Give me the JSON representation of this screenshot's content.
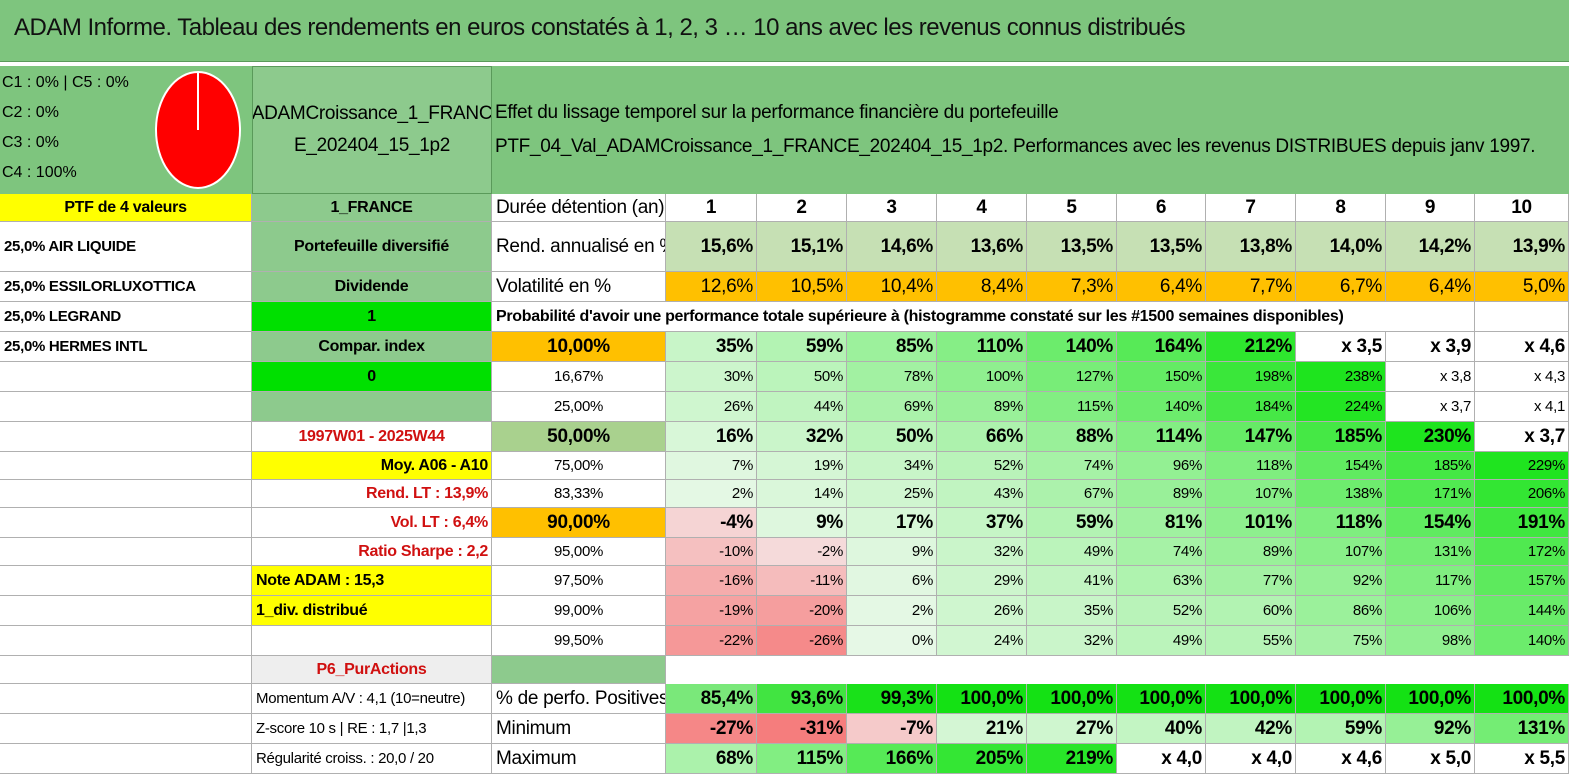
{
  "title": "ADAM Informe. Tableau des rendements en euros constatés à 1, 2, 3 … 10 ans avec les revenus connus distribués",
  "classes": [
    "C1 : 0% | C5 : 0%",
    "C2 : 0%",
    "C3 : 0%",
    "C4 : 100%"
  ],
  "pie": {
    "colors": {
      "slice": "#ff0000"
    },
    "values": {
      "C1": 0,
      "C2": 0,
      "C3": 0,
      "C4": 100,
      "C5": 0
    }
  },
  "portfolio_name": "ADAMCroissance_1_FRANCE_202404_15_1p2",
  "portfolio_name_line1": "ADAMCroissance_1_FRANC",
  "portfolio_name_line2": "E_202404_15_1p2",
  "header": {
    "line1": "Effet du lissage temporel sur la performance financière du portefeuille",
    "line2": "PTF_04_Val_ADAMCroissance_1_FRANCE_202404_15_1p2. Performances avec les revenus DISTRIBUES depuis janv 1997."
  },
  "left": {
    "ptf": "PTF de 4 valeurs",
    "holdings": [
      "25,0% AIR LIQUIDE",
      "25,0% ESSILORLUXOTTICA",
      "25,0% LEGRAND",
      "25,0% HERMES INTL"
    ]
  },
  "mid": {
    "market": "1_FRANCE",
    "type": "Portefeuille diversifié",
    "income": "Dividende",
    "flag1": "1",
    "compar": "Compar. index",
    "flag0": "0",
    "period": "1997W01 - 2025W44",
    "moy": "Moy. A06 - A10",
    "rend_lt": "Rend. LT : 13,9%",
    "vol_lt": "Vol. LT : 6,4%",
    "sharpe": "Ratio Sharpe : 2,2",
    "note": "Note ADAM : 15,3",
    "div": "1_div. distribué",
    "p6": "P6_PurActions",
    "momentum": "Momentum A/V : 4,1 (10=neutre)",
    "zscore": "Z-score 10 s | RE : 1,7 |1,3",
    "regularite": "Régularité croiss. : 20,0 / 20"
  },
  "durations_label": "Durée détention (an)",
  "durations": [
    "1",
    "2",
    "3",
    "4",
    "5",
    "6",
    "7",
    "8",
    "9",
    "10"
  ],
  "rend": {
    "label": "Rend. annualisé en %",
    "values": [
      "15,6%",
      "15,1%",
      "14,6%",
      "13,6%",
      "13,5%",
      "13,5%",
      "13,8%",
      "14,0%",
      "14,2%",
      "13,9%"
    ]
  },
  "vol": {
    "label": "Volatilité en %",
    "values": [
      "12,6%",
      "10,5%",
      "10,4%",
      "8,4%",
      "7,3%",
      "6,4%",
      "7,7%",
      "6,7%",
      "6,4%",
      "5,0%"
    ]
  },
  "prob_title": "Probabilité d'avoir une performance totale supérieure à (histogramme constaté sur les #1500 semaines disponibles)",
  "prob_rows": [
    {
      "p": "10,00%",
      "values": [
        "35%",
        "59%",
        "85%",
        "110%",
        "140%",
        "164%",
        "212%",
        "x 3,5",
        "x 3,9",
        "x 4,6"
      ]
    },
    {
      "p": "16,67%",
      "values": [
        "30%",
        "50%",
        "78%",
        "100%",
        "127%",
        "150%",
        "198%",
        "238%",
        "x 3,8",
        "x 4,3"
      ]
    },
    {
      "p": "25,00%",
      "values": [
        "26%",
        "44%",
        "69%",
        "89%",
        "115%",
        "140%",
        "184%",
        "224%",
        "x 3,7",
        "x 4,1"
      ]
    },
    {
      "p": "50,00%",
      "values": [
        "16%",
        "32%",
        "50%",
        "66%",
        "88%",
        "114%",
        "147%",
        "185%",
        "230%",
        "x 3,7"
      ]
    },
    {
      "p": "75,00%",
      "values": [
        "7%",
        "19%",
        "34%",
        "52%",
        "74%",
        "96%",
        "118%",
        "154%",
        "185%",
        "229%"
      ]
    },
    {
      "p": "83,33%",
      "values": [
        "2%",
        "14%",
        "25%",
        "43%",
        "67%",
        "89%",
        "107%",
        "138%",
        "171%",
        "206%"
      ]
    },
    {
      "p": "90,00%",
      "values": [
        "-4%",
        "9%",
        "17%",
        "37%",
        "59%",
        "81%",
        "101%",
        "118%",
        "154%",
        "191%"
      ]
    },
    {
      "p": "95,00%",
      "values": [
        "-10%",
        "-2%",
        "9%",
        "32%",
        "49%",
        "74%",
        "89%",
        "107%",
        "131%",
        "172%"
      ]
    },
    {
      "p": "97,50%",
      "values": [
        "-16%",
        "-11%",
        "6%",
        "29%",
        "41%",
        "63%",
        "77%",
        "92%",
        "117%",
        "157%"
      ]
    },
    {
      "p": "99,00%",
      "values": [
        "-19%",
        "-20%",
        "2%",
        "26%",
        "35%",
        "52%",
        "60%",
        "86%",
        "106%",
        "144%"
      ]
    },
    {
      "p": "99,50%",
      "values": [
        "-22%",
        "-26%",
        "0%",
        "24%",
        "32%",
        "49%",
        "55%",
        "75%",
        "98%",
        "140%"
      ]
    }
  ],
  "stats": [
    {
      "label": "% de perfo. Positives",
      "values": [
        "85,4%",
        "93,6%",
        "99,3%",
        "100,0%",
        "100,0%",
        "100,0%",
        "100,0%",
        "100,0%",
        "100,0%",
        "100,0%"
      ]
    },
    {
      "label": "Minimum",
      "values": [
        "-27%",
        "-31%",
        "-7%",
        "21%",
        "27%",
        "40%",
        "42%",
        "59%",
        "92%",
        "131%"
      ]
    },
    {
      "label": "Maximum",
      "values": [
        "68%",
        "115%",
        "166%",
        "205%",
        "219%",
        "x 4,0",
        "x 4,0",
        "x 4,6",
        "x 5,0",
        "x 5,5"
      ]
    }
  ],
  "colors": {
    "green_header": "#7ec57e",
    "yellow": "#ffff00",
    "orange": "#ffc000",
    "bright_green": "#00e000",
    "red_text": "#d01010"
  }
}
